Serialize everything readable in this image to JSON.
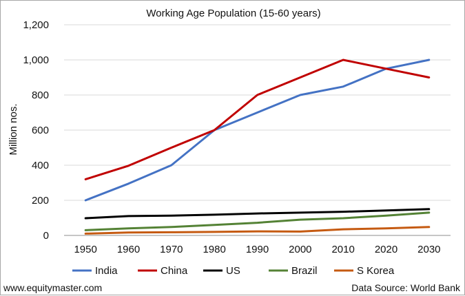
{
  "footer": {
    "website": "www.equitymaster.com",
    "source": "Data Source: World Bank"
  },
  "chart_data": {
    "type": "line",
    "title": "Working Age Population (15-60 years)",
    "xlabel": "",
    "ylabel": "Million nos.",
    "x": [
      "1950",
      "1960",
      "1970",
      "1980",
      "1990",
      "2000",
      "2010",
      "2020",
      "2030"
    ],
    "ylim": [
      0,
      1200
    ],
    "yticks": [
      0,
      200,
      400,
      600,
      800,
      1000,
      1200
    ],
    "ytick_labels": [
      "0",
      "200",
      "400",
      "600",
      "800",
      "1,000",
      "1,200"
    ],
    "grid": true,
    "legend_position": "bottom",
    "series": [
      {
        "name": "India",
        "color": "#4472c4",
        "values": [
          200,
          295,
          400,
          600,
          700,
          800,
          848,
          950,
          1000
        ]
      },
      {
        "name": "China",
        "color": "#c00000",
        "values": [
          320,
          397,
          500,
          600,
          800,
          900,
          1000,
          950,
          900
        ]
      },
      {
        "name": "US",
        "color": "#000000",
        "values": [
          98,
          110,
          113,
          118,
          125,
          130,
          135,
          142,
          150
        ]
      },
      {
        "name": "Brazil",
        "color": "#548235",
        "values": [
          30,
          40,
          48,
          60,
          72,
          90,
          98,
          113,
          130
        ]
      },
      {
        "name": "S Korea",
        "color": "#c55a11",
        "values": [
          10,
          17,
          18,
          20,
          23,
          22,
          35,
          40,
          48
        ]
      }
    ]
  }
}
